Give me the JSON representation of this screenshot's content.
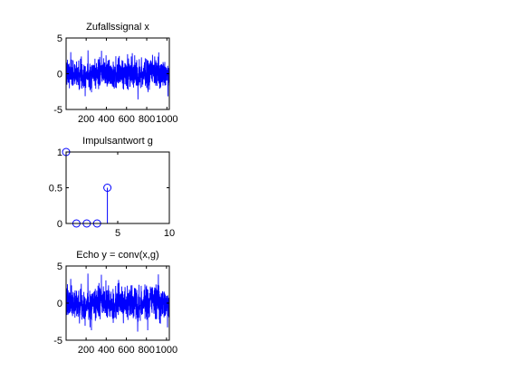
{
  "chart_data": [
    {
      "type": "line",
      "title": "Zufallssignal x",
      "xlim": [
        1,
        1024
      ],
      "ylim": [
        -5,
        5
      ],
      "xticks": [
        200,
        400,
        600,
        800,
        1000
      ],
      "xtick_labels": [
        "200",
        "400",
        "600",
        "800",
        "1000"
      ],
      "yticks": [
        -5,
        0,
        5
      ],
      "ytick_labels": [
        "-5",
        "0",
        "5"
      ],
      "grid": false,
      "color": "#0000ff",
      "series": [
        {
          "length": 1024,
          "distribution": "gaussian",
          "mean": 0,
          "std": 1,
          "seed": 7
        }
      ]
    },
    {
      "type": "stem",
      "title": "Impulsantwort g",
      "xlim": [
        0,
        10
      ],
      "ylim": [
        0,
        1
      ],
      "xticks": [
        5,
        10
      ],
      "xtick_labels": [
        "5",
        "10"
      ],
      "yticks": [
        0,
        0.5,
        1
      ],
      "ytick_labels": [
        "0",
        "0.5",
        "1"
      ],
      "grid": false,
      "color": "#0000ff",
      "x": [
        0,
        1,
        2,
        3,
        4
      ],
      "values": [
        1,
        0,
        0,
        0,
        0.5
      ]
    },
    {
      "type": "line",
      "title": "Echo y = conv(x,g)",
      "xlim": [
        1,
        1028
      ],
      "ylim": [
        -5,
        5
      ],
      "xticks": [
        200,
        400,
        600,
        800,
        1000
      ],
      "xtick_labels": [
        "200",
        "400",
        "600",
        "800",
        "1000"
      ],
      "yticks": [
        -5,
        0,
        5
      ],
      "ytick_labels": [
        "-5",
        "0",
        "5"
      ],
      "grid": false,
      "color": "#0000ff",
      "series": [
        {
          "length": 1028,
          "derived_from": "conv(x,g)"
        }
      ]
    }
  ]
}
